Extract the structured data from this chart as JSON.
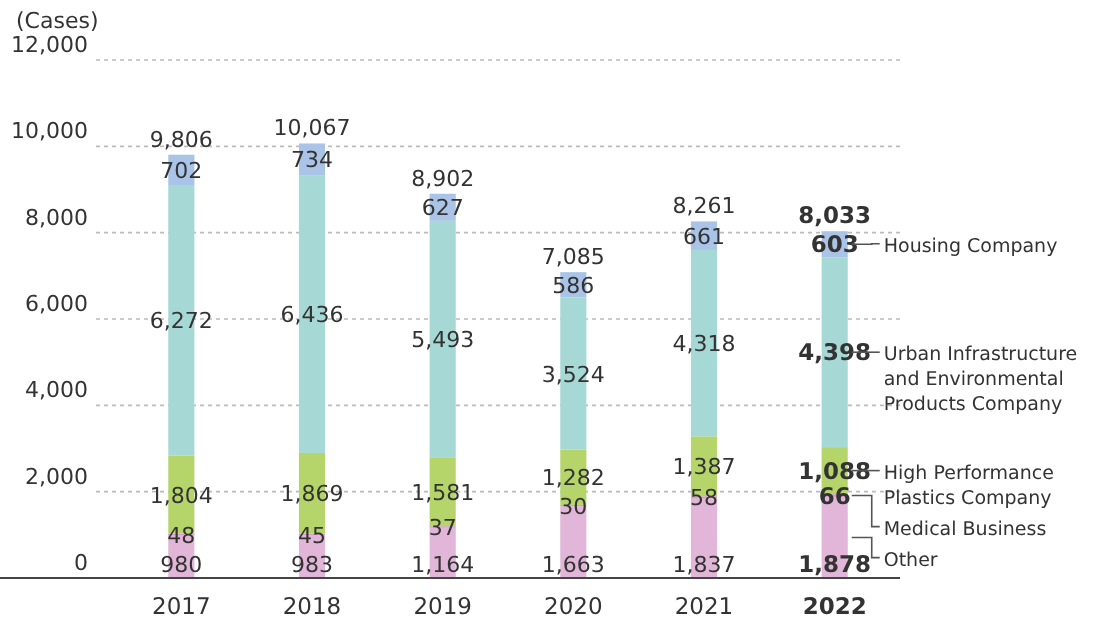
{
  "chart_data": {
    "type": "bar",
    "stacked": true,
    "ylabel": "(Cases)",
    "categories": [
      "2017",
      "2018",
      "2019",
      "2020",
      "2021",
      "2022"
    ],
    "ylim": [
      0,
      12000
    ],
    "yticks": [
      {
        "value": 0,
        "label": "0"
      },
      {
        "value": 2000,
        "label": "2,000"
      },
      {
        "value": 4000,
        "label": "4,000"
      },
      {
        "value": 6000,
        "label": "6,000"
      },
      {
        "value": 8000,
        "label": "8,000"
      },
      {
        "value": 10000,
        "label": "10,000"
      },
      {
        "value": 12000,
        "label": "12,000"
      }
    ],
    "grid": "y",
    "legend": "right",
    "series": [
      {
        "name": "Other",
        "color": "#e2b6d8",
        "values": [
          980,
          983,
          1164,
          1663,
          1837,
          1878
        ],
        "value_labels": [
          "980",
          "983",
          "1,164",
          "1,663",
          "1,837",
          "1,878"
        ]
      },
      {
        "name": "Medical Business",
        "color": "#d89cc8",
        "values": [
          48,
          45,
          37,
          30,
          58,
          66
        ],
        "value_labels": [
          "48",
          "45",
          "37",
          "30",
          "58",
          "66"
        ]
      },
      {
        "name": "High Performance Plastics Company",
        "color": "#b5d56a",
        "values": [
          1804,
          1869,
          1581,
          1282,
          1387,
          1088
        ],
        "value_labels": [
          "1,804",
          "1,869",
          "1,581",
          "1,282",
          "1,387",
          "1,088"
        ]
      },
      {
        "name": "Urban Infrastructure and Environmental Products Company",
        "color": "#a6d9d5",
        "values": [
          6272,
          6436,
          5493,
          3524,
          4318,
          4398
        ],
        "value_labels": [
          "6,272",
          "6,436",
          "5,493",
          "3,524",
          "4,318",
          "4,398"
        ]
      },
      {
        "name": "Housing Company",
        "color": "#a9c4e6",
        "values": [
          702,
          734,
          627,
          586,
          661,
          603
        ],
        "value_labels": [
          "702",
          "734",
          "627",
          "586",
          "661",
          "603"
        ]
      }
    ],
    "totals": [
      "9,806",
      "10,067",
      "8,902",
      "7,085",
      "8,261",
      "8,033"
    ]
  }
}
